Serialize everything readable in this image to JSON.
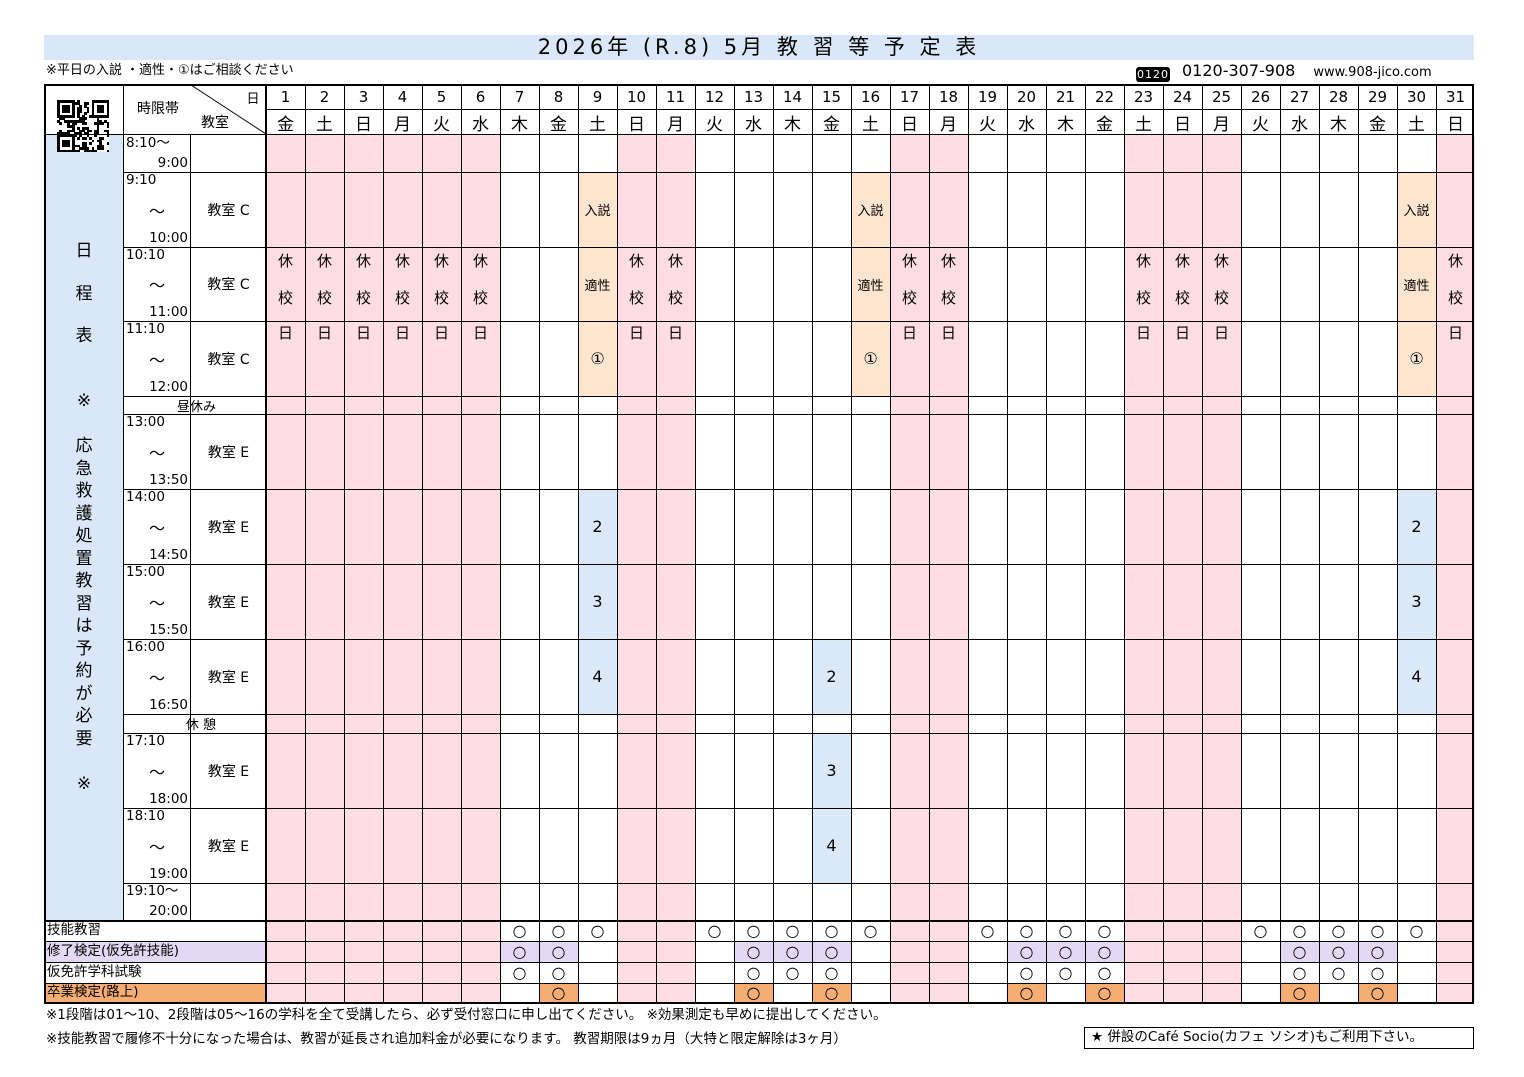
{
  "title": "2026年 (R.8)  5月  教 習 等 予 定 表",
  "top_note": "※平日の入説 ・適性・①はご相談ください",
  "phone_icon": "0120",
  "phone": "0120-307-908",
  "url": "www.908-jico.com",
  "header": {
    "period_label": "時限帯",
    "day_label": "日",
    "room_label": "教室",
    "side_text": [
      "日",
      "程",
      "表",
      "",
      "※",
      "",
      "応",
      "急",
      "救",
      "護",
      "処",
      "置",
      "教",
      "習",
      "は",
      "予",
      "約",
      "が",
      "必",
      "要",
      "",
      "※"
    ]
  },
  "days": [
    {
      "num": "1",
      "wd": "金"
    },
    {
      "num": "2",
      "wd": "土"
    },
    {
      "num": "3",
      "wd": "日"
    },
    {
      "num": "4",
      "wd": "月"
    },
    {
      "num": "5",
      "wd": "火"
    },
    {
      "num": "6",
      "wd": "水"
    },
    {
      "num": "7",
      "wd": "木"
    },
    {
      "num": "8",
      "wd": "金"
    },
    {
      "num": "9",
      "wd": "土"
    },
    {
      "num": "10",
      "wd": "日"
    },
    {
      "num": "11",
      "wd": "月"
    },
    {
      "num": "12",
      "wd": "火"
    },
    {
      "num": "13",
      "wd": "水"
    },
    {
      "num": "14",
      "wd": "木"
    },
    {
      "num": "15",
      "wd": "金"
    },
    {
      "num": "16",
      "wd": "土"
    },
    {
      "num": "17",
      "wd": "日"
    },
    {
      "num": "18",
      "wd": "月"
    },
    {
      "num": "19",
      "wd": "火"
    },
    {
      "num": "20",
      "wd": "水"
    },
    {
      "num": "21",
      "wd": "木"
    },
    {
      "num": "22",
      "wd": "金"
    },
    {
      "num": "23",
      "wd": "土"
    },
    {
      "num": "24",
      "wd": "日"
    },
    {
      "num": "25",
      "wd": "月"
    },
    {
      "num": "26",
      "wd": "火"
    },
    {
      "num": "27",
      "wd": "水"
    },
    {
      "num": "28",
      "wd": "木"
    },
    {
      "num": "29",
      "wd": "金"
    },
    {
      "num": "30",
      "wd": "土"
    },
    {
      "num": "31",
      "wd": "日"
    }
  ],
  "closed_days": [
    1,
    2,
    3,
    4,
    5,
    6,
    10,
    11,
    17,
    18,
    23,
    24,
    25,
    31
  ],
  "closed_text": [
    "休",
    "校",
    "日"
  ],
  "periods": [
    {
      "start": "8:10～",
      "tilde": "",
      "end": "9:00",
      "room": ""
    },
    {
      "start": "9:10",
      "tilde": "～",
      "end": "10:00",
      "room": "教室 C"
    },
    {
      "start": "10:10",
      "tilde": "～",
      "end": "11:00",
      "room": "教室 C"
    },
    {
      "start": "11:10",
      "tilde": "～",
      "end": "12:00",
      "room": "教室 C"
    },
    {
      "break": "昼休み"
    },
    {
      "start": "13:00",
      "tilde": "～",
      "end": "13:50",
      "room": "教室 E"
    },
    {
      "start": "14:00",
      "tilde": "～",
      "end": "14:50",
      "room": "教室 E"
    },
    {
      "start": "15:00",
      "tilde": "～",
      "end": "15:50",
      "room": "教室 E"
    },
    {
      "start": "16:00",
      "tilde": "～",
      "end": "16:50",
      "room": "教室 E"
    },
    {
      "break": "休 憩"
    },
    {
      "start": "17:10",
      "tilde": "～",
      "end": "18:00",
      "room": "教室 E"
    },
    {
      "start": "18:10",
      "tilde": "～",
      "end": "19:00",
      "room": "教室 E"
    },
    {
      "start": "19:10～",
      "tilde": "",
      "end": "20:00",
      "room": ""
    }
  ],
  "events": [
    {
      "day": 9,
      "row": 1,
      "text": "入説",
      "kind": "orange"
    },
    {
      "day": 9,
      "row": 2,
      "text": "適性",
      "kind": "orange"
    },
    {
      "day": 9,
      "row": 3,
      "text": "①",
      "kind": "orange"
    },
    {
      "day": 16,
      "row": 1,
      "text": "入説",
      "kind": "orange"
    },
    {
      "day": 16,
      "row": 2,
      "text": "適性",
      "kind": "orange"
    },
    {
      "day": 16,
      "row": 3,
      "text": "①",
      "kind": "orange"
    },
    {
      "day": 30,
      "row": 1,
      "text": "入説",
      "kind": "orange"
    },
    {
      "day": 30,
      "row": 2,
      "text": "適性",
      "kind": "orange"
    },
    {
      "day": 30,
      "row": 3,
      "text": "①",
      "kind": "orange"
    },
    {
      "day": 9,
      "row": 6,
      "text": "2",
      "kind": "blue"
    },
    {
      "day": 9,
      "row": 7,
      "text": "3",
      "kind": "blue"
    },
    {
      "day": 9,
      "row": 8,
      "text": "4",
      "kind": "blue"
    },
    {
      "day": 30,
      "row": 6,
      "text": "2",
      "kind": "blue"
    },
    {
      "day": 30,
      "row": 7,
      "text": "3",
      "kind": "blue"
    },
    {
      "day": 30,
      "row": 8,
      "text": "4",
      "kind": "blue"
    },
    {
      "day": 15,
      "row": 8,
      "text": "2",
      "kind": "blue"
    },
    {
      "day": 15,
      "row": 10,
      "text": "3",
      "kind": "blue"
    },
    {
      "day": 15,
      "row": 11,
      "text": "4",
      "kind": "blue"
    }
  ],
  "bottom_rows": [
    {
      "label": "技能教習",
      "color": "#ffffff",
      "mark_color": "#ffffff",
      "days": [
        7,
        8,
        9,
        12,
        13,
        14,
        15,
        16,
        19,
        20,
        21,
        22,
        26,
        27,
        28,
        29,
        30
      ]
    },
    {
      "label": "修了検定(仮免許技能)",
      "color": "#e4d9f5",
      "mark_color": "#e4d9f5",
      "days": [
        7,
        8,
        13,
        14,
        15,
        20,
        21,
        22,
        27,
        28,
        29
      ]
    },
    {
      "label": "仮免許学科試験",
      "color": "#ffffff",
      "mark_color": "#ffffff",
      "days": [
        7,
        8,
        13,
        14,
        15,
        20,
        21,
        22,
        27,
        28,
        29
      ]
    },
    {
      "label": "卒業検定(路上)",
      "color": "#f5ad72",
      "mark_color": "#f5ad72",
      "days": [
        8,
        13,
        15,
        20,
        22,
        27,
        29
      ]
    }
  ],
  "mark": "○",
  "colors": {
    "closed": "#ffdde4",
    "orange": "#fde5d0",
    "blue": "#dbe8f8",
    "title_bg": "#d9e7f8",
    "side_bg": "#d9e7f8"
  },
  "footer": {
    "line1": "※1段階は01～10、2段階は05～16の学科を全て受講したら、必ず受付窓口に申し出てください。     ※効果測定も早めに提出してください。",
    "line2": "※技能教習で履修不十分になった場合は、教習が延長され追加料金が必要になります。       教習期限は9ヵ月（大特と限定解除は3ヶ月）",
    "cafe": "★ 併設のCafé Socio(カフェ ソシオ)もご利用下さい。"
  }
}
